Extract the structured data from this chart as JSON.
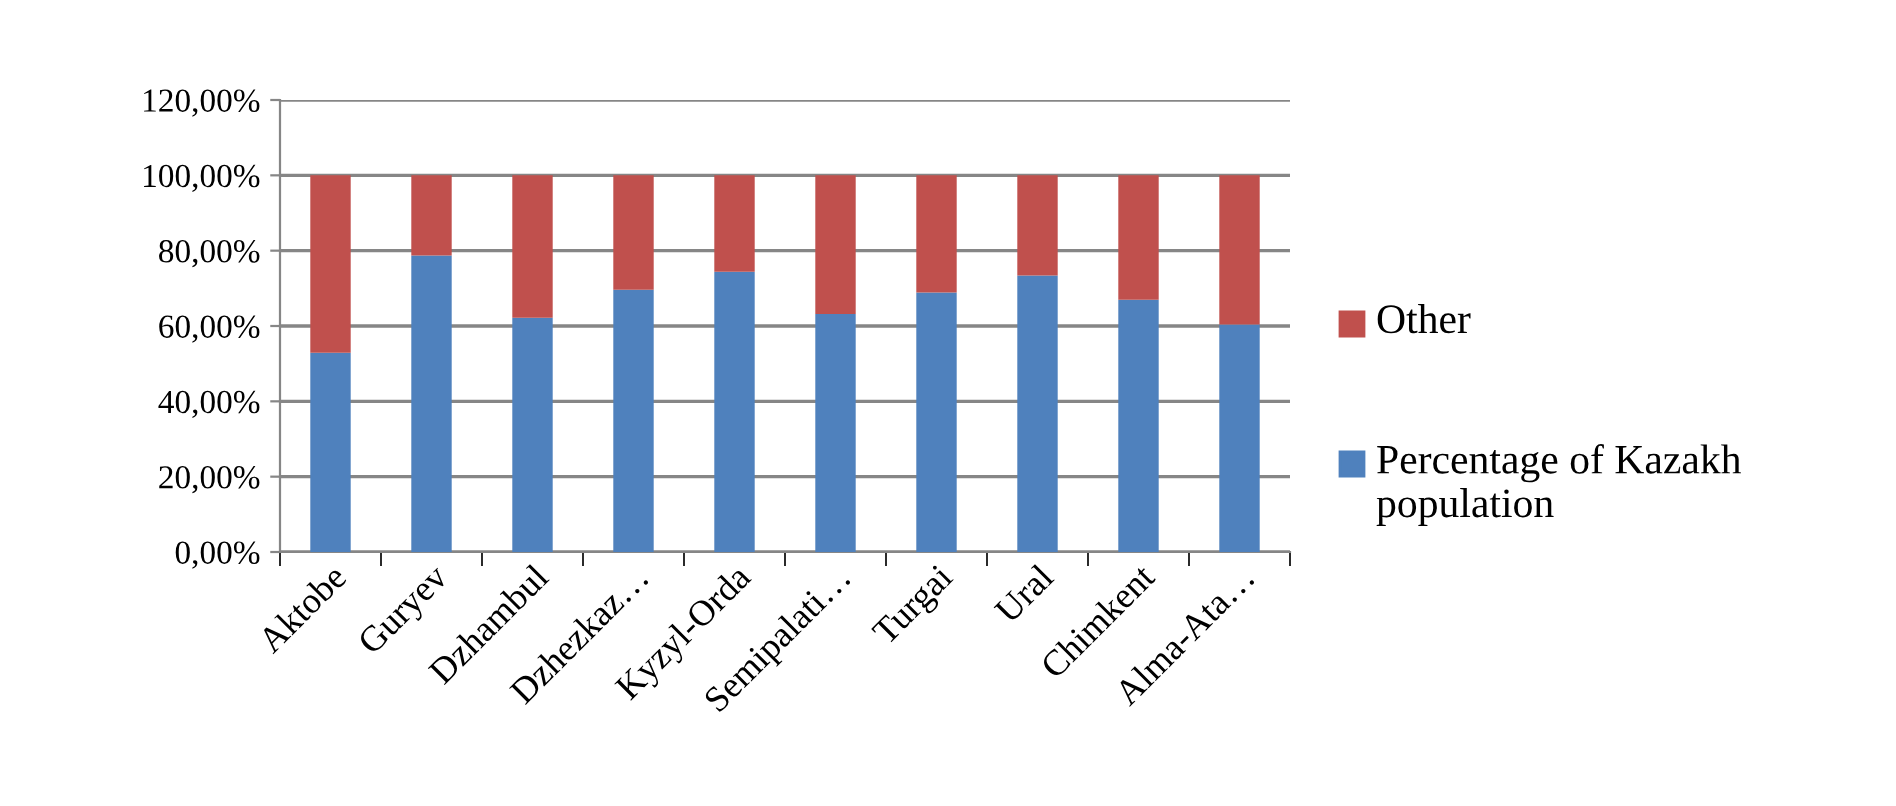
{
  "chart_data": {
    "type": "bar",
    "stacked": true,
    "categories": [
      "Aktobe",
      "Guryev",
      "Dzhambul",
      "Dzhezkaz…",
      "Kyzyl-Orda",
      "Semipalati…",
      "Turgai",
      "Ural",
      "Chimkent",
      "Alma-Ata…"
    ],
    "series": [
      {
        "name": "Percentage of Kazakh population",
        "color": "#4f81bd",
        "values": [
          52.9,
          78.7,
          62.2,
          69.6,
          74.4,
          63.2,
          68.9,
          73.4,
          67.0,
          60.4
        ]
      },
      {
        "name": "Other",
        "color": "#c0504d",
        "values": [
          47.1,
          21.3,
          37.8,
          30.4,
          25.6,
          36.8,
          31.1,
          26.6,
          33.0,
          39.6
        ]
      }
    ],
    "ylim": [
      0,
      120
    ],
    "yticks": [
      {
        "value": 0,
        "label": "0,00%"
      },
      {
        "value": 20,
        "label": "20,00%"
      },
      {
        "value": 40,
        "label": "40,00%"
      },
      {
        "value": 60,
        "label": "60,00%"
      },
      {
        "value": 80,
        "label": "80,00%"
      },
      {
        "value": 100,
        "label": "100,00%"
      },
      {
        "value": 120,
        "label": "120,00%"
      }
    ],
    "grid": "y",
    "legend": "right"
  }
}
